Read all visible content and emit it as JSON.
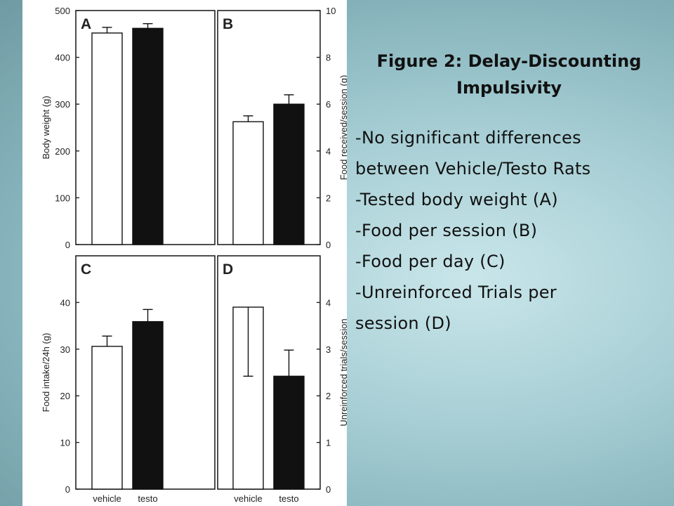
{
  "slide": {
    "title_line1": "Figure 2:  Delay-Discounting",
    "title_line2": "Impulsivity",
    "bullets": [
      "-No significant differences",
      "between Vehicle/Testo Rats",
      "-Tested body weight (A)",
      "-Food per session (B)",
      "-Food per day (C)",
      "-Unreinforced Trials per",
      "session (D)"
    ]
  },
  "colors": {
    "vehicle_fill": "#ffffff",
    "testo_fill": "#111111",
    "axis": "#222222",
    "background_accent": "#a9d0d6"
  },
  "chart_data": [
    {
      "panel": "A",
      "type": "bar",
      "categories": [
        "vehicle",
        "testo"
      ],
      "values": [
        452,
        462
      ],
      "errors": [
        12,
        10
      ],
      "ylabel": "Body weight (g)",
      "ylim": [
        0,
        500
      ],
      "yticks": [
        0,
        100,
        200,
        300,
        400,
        500
      ],
      "axis_side": "left"
    },
    {
      "panel": "B",
      "type": "bar",
      "categories": [
        "vehicle",
        "testo"
      ],
      "values": [
        5.25,
        6.0
      ],
      "errors": [
        0.25,
        0.4
      ],
      "ylabel": "Food received/session (g)",
      "ylim": [
        0,
        10
      ],
      "yticks": [
        0,
        2,
        4,
        6,
        8,
        10
      ],
      "axis_side": "right"
    },
    {
      "panel": "C",
      "type": "bar",
      "categories": [
        "vehicle",
        "testo"
      ],
      "values": [
        30.6,
        35.9
      ],
      "errors": [
        2.2,
        2.6
      ],
      "ylabel": "Food intake/24h (g)",
      "ylim": [
        0,
        50
      ],
      "yticks": [
        0,
        10,
        20,
        30,
        40
      ],
      "axis_side": "left",
      "xlabels": [
        "vehicle",
        "testo"
      ]
    },
    {
      "panel": "D",
      "type": "bar",
      "categories": [
        "vehicle",
        "testo"
      ],
      "values": [
        3.9,
        2.42
      ],
      "errors": [
        1.48,
        0.56
      ],
      "error_direction": [
        "down",
        "up"
      ],
      "ylabel": "Unreinforced trials/session",
      "ylim": [
        0,
        5
      ],
      "yticks": [
        0,
        1,
        2,
        3,
        4
      ],
      "axis_side": "right",
      "xlabels": [
        "vehicle",
        "testo"
      ]
    }
  ]
}
